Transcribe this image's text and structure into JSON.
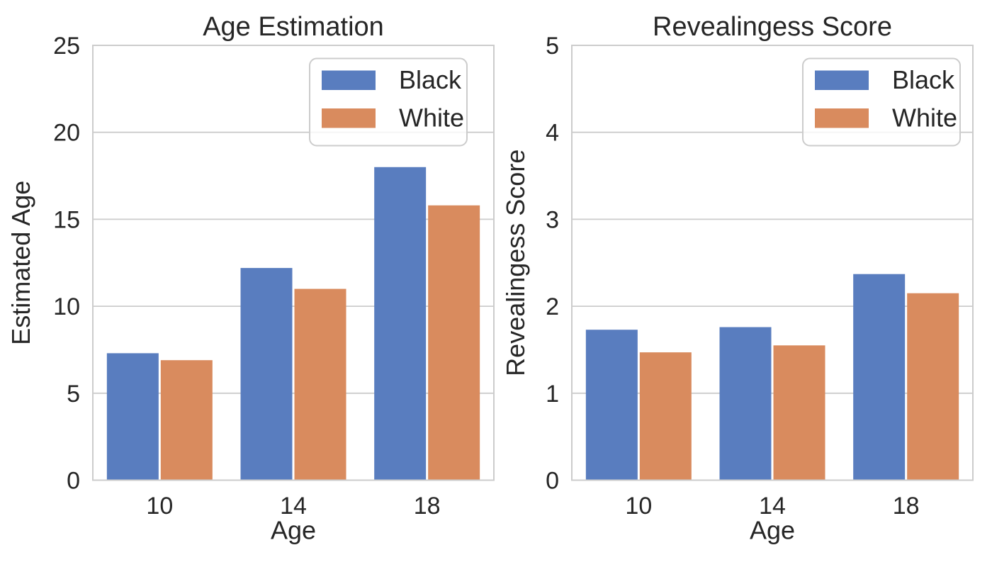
{
  "figure": {
    "background": "#ffffff",
    "text_color": "#262626",
    "spine_color": "#cccccc",
    "grid_color": "#cccccc"
  },
  "legend": {
    "entries": [
      {
        "label": "Black",
        "color": "#597dbf"
      },
      {
        "label": "White",
        "color": "#d98b5e"
      }
    ]
  },
  "chart_data": [
    {
      "type": "bar",
      "title": "Age Estimation",
      "xlabel": "Age",
      "ylabel": "Estimated Age",
      "categories": [
        "10",
        "14",
        "18"
      ],
      "series": [
        {
          "name": "Black",
          "color": "#597dbf",
          "values": [
            7.3,
            12.2,
            18.0
          ]
        },
        {
          "name": "White",
          "color": "#d98b5e",
          "values": [
            6.9,
            11.0,
            15.8
          ]
        }
      ],
      "ylim": [
        0,
        25
      ],
      "yticks": [
        0,
        5,
        10,
        15,
        20,
        25
      ],
      "grid": "horizontal",
      "legend_position": "upper right",
      "legend_labels": [
        "Black",
        "White"
      ]
    },
    {
      "type": "bar",
      "title": "Revealingess Score",
      "xlabel": "Age",
      "ylabel": "Revealingess Score",
      "categories": [
        "10",
        "14",
        "18"
      ],
      "series": [
        {
          "name": "Black",
          "color": "#597dbf",
          "values": [
            1.73,
            1.76,
            2.37
          ]
        },
        {
          "name": "White",
          "color": "#d98b5e",
          "values": [
            1.47,
            1.55,
            2.15
          ]
        }
      ],
      "ylim": [
        0,
        5
      ],
      "yticks": [
        0,
        1,
        2,
        3,
        4,
        5
      ],
      "grid": "horizontal",
      "legend_position": "upper right",
      "legend_labels": [
        "Black",
        "White"
      ]
    }
  ]
}
